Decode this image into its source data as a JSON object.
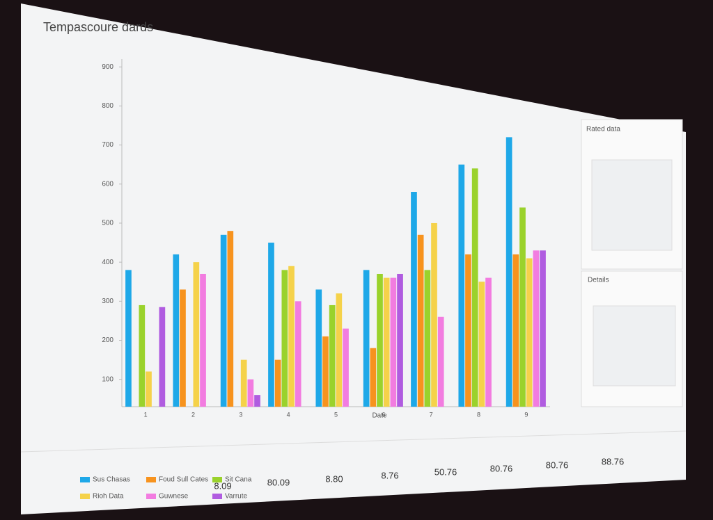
{
  "chart_data": {
    "type": "bar",
    "title": "Tempascoure dards",
    "x_label": "Date",
    "categories": [
      "1",
      "2",
      "3",
      "4",
      "5",
      "6",
      "7",
      "8",
      "9"
    ],
    "series": [
      {
        "name": "Sus Chasas",
        "color": "#1ea8e8",
        "values": [
          380,
          420,
          470,
          450,
          330,
          380,
          580,
          650,
          720
        ]
      },
      {
        "name": "Foud Sull Cates",
        "color": "#f7931e",
        "values": [
          null,
          330,
          480,
          150,
          210,
          180,
          470,
          420,
          420
        ]
      },
      {
        "name": "Sit Cana",
        "color": "#9ad22c",
        "values": [
          290,
          null,
          null,
          380,
          290,
          370,
          380,
          640,
          540
        ]
      },
      {
        "name": "Rioh Data",
        "color": "#f5d24a",
        "values": [
          120,
          400,
          150,
          390,
          320,
          360,
          500,
          350,
          410
        ]
      },
      {
        "name": "Guwnese",
        "color": "#f27ce0",
        "values": [
          null,
          370,
          100,
          300,
          230,
          360,
          260,
          360,
          430
        ]
      },
      {
        "name": "Varrute",
        "color": "#b05ce0",
        "values": [
          285,
          null,
          60,
          null,
          null,
          370,
          null,
          null,
          430
        ]
      }
    ],
    "ylim": [
      30,
      920
    ],
    "yticks": [
      100,
      200,
      300,
      400,
      500,
      600,
      700,
      800,
      900
    ],
    "grid": false
  },
  "panels": [
    {
      "title": "Rated data"
    },
    {
      "title": "Details"
    }
  ],
  "summary": {
    "values": [
      "8.09",
      "80.09",
      "8.80",
      "8.76",
      "50.76",
      "80.76",
      "80.76",
      "88.76"
    ]
  }
}
